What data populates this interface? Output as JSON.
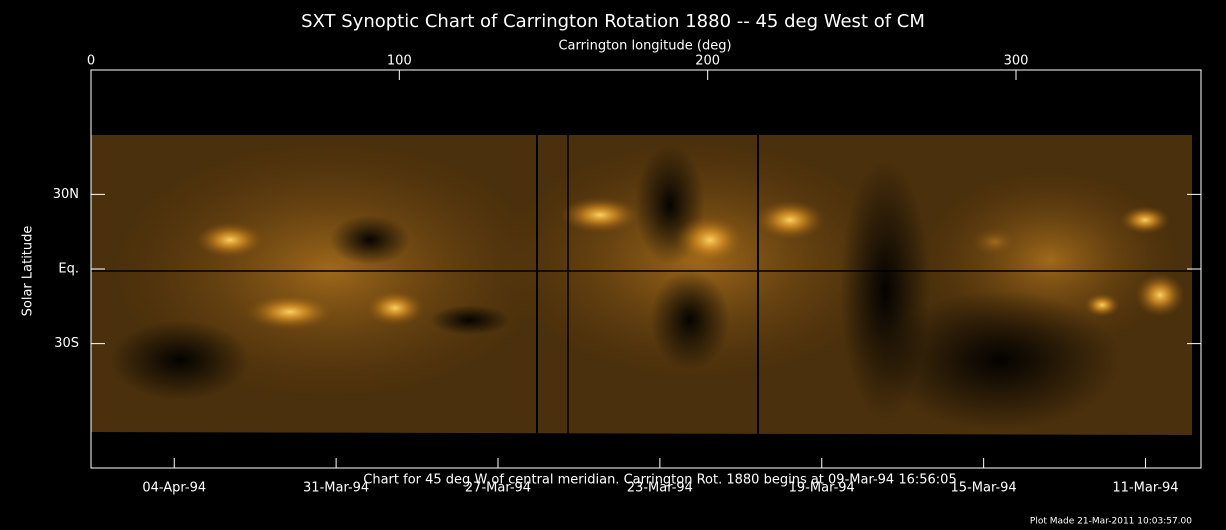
{
  "chart_data": {
    "type": "image",
    "title": "SXT Synoptic Chart of Carrington Rotation 1880 -- 45 deg West of CM",
    "x_label": "Carrington longitude (deg)",
    "y_label": "Solar Latitude",
    "xlim": [
      0,
      360
    ],
    "xticks": [
      0,
      100,
      200,
      300
    ],
    "ylim": [
      -80,
      80
    ],
    "yticks": [
      {
        "value": 30,
        "label": "30N"
      },
      {
        "value": 0,
        "label": "Eq."
      },
      {
        "value": -30,
        "label": "30S"
      }
    ],
    "date_ticks": [
      {
        "value": 27,
        "label": "04-Apr-94"
      },
      {
        "value": 79.5,
        "label": "31-Mar-94"
      },
      {
        "value": 132,
        "label": "27-Mar-94"
      },
      {
        "value": 184.5,
        "label": "23-Mar-94"
      },
      {
        "value": 237,
        "label": "19-Mar-94"
      },
      {
        "value": 289.5,
        "label": "15-Mar-94"
      },
      {
        "value": 342,
        "label": "11-Mar-94"
      }
    ],
    "caption": "Chart for 45 deg W of central meridian.  Carrington Rot. 1880 begins at 09-Mar-94 16:56:05",
    "footer": "Plot Made 21-Mar-2011 10:03:57.00"
  }
}
